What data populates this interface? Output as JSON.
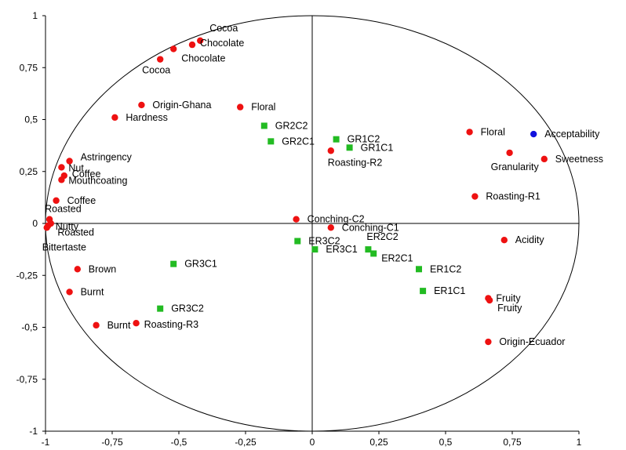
{
  "chart_data": {
    "type": "scatter",
    "title": "",
    "xlabel": "",
    "ylabel": "",
    "xlim": [
      -1,
      1
    ],
    "ylim": [
      -1,
      1
    ],
    "grid": false,
    "legend": "none",
    "x_ticks": [
      "-1",
      "-0,75",
      "-0,5",
      "-0,25",
      "0",
      "0,25",
      "0,5",
      "0,75",
      "1"
    ],
    "y_ticks": [
      "1",
      "0,75",
      "0,5",
      "0,25",
      "0",
      "-0,25",
      "-0,5",
      "-0,75",
      "-1"
    ],
    "unit_circle": true,
    "colors": {
      "red_marker": "#ee1111",
      "green_marker": "#22bb22",
      "blue_marker": "#1111dd",
      "axis": "#000000",
      "circle": "#000000"
    },
    "series": [
      {
        "marker": "red_circle",
        "points": [
          {
            "label": "Cocoa",
            "x": -0.42,
            "y": 0.88
          },
          {
            "label": "Chocolate",
            "x": -0.45,
            "y": 0.86
          },
          {
            "label": "Chocolate",
            "x": -0.52,
            "y": 0.84
          },
          {
            "label": "Cocoa",
            "x": -0.57,
            "y": 0.79
          },
          {
            "label": "Origin-Ghana",
            "x": -0.64,
            "y": 0.57
          },
          {
            "label": "Hardness",
            "x": -0.74,
            "y": 0.51
          },
          {
            "label": "Floral",
            "x": -0.27,
            "y": 0.56
          },
          {
            "label": "Astringency",
            "x": -0.91,
            "y": 0.3
          },
          {
            "label": "Nut",
            "x": -0.94,
            "y": 0.27
          },
          {
            "label": "Coffee",
            "x": -0.93,
            "y": 0.23
          },
          {
            "label": "Mouthcoating",
            "x": -0.94,
            "y": 0.21
          },
          {
            "label": "Coffee",
            "x": -0.96,
            "y": 0.11
          },
          {
            "label": "Roasted",
            "x": -0.985,
            "y": 0.02
          },
          {
            "label": "Nutty",
            "x": -0.98,
            "y": 0.0
          },
          {
            "label": "Roasted",
            "x": -0.99,
            "y": -0.01
          },
          {
            "label": "Bittertaste",
            "x": -0.995,
            "y": -0.02
          },
          {
            "label": "Brown",
            "x": -0.88,
            "y": -0.22
          },
          {
            "label": "Burnt",
            "x": -0.91,
            "y": -0.33
          },
          {
            "label": "Burnt",
            "x": -0.81,
            "y": -0.49
          },
          {
            "label": "Roasting-R3",
            "x": -0.66,
            "y": -0.48
          },
          {
            "label": "Roasting-R2",
            "x": 0.07,
            "y": 0.35
          },
          {
            "label": "Conching-C2",
            "x": -0.06,
            "y": 0.02
          },
          {
            "label": "Conching-C1",
            "x": 0.07,
            "y": -0.02
          },
          {
            "label": "Floral",
            "x": 0.59,
            "y": 0.44
          },
          {
            "label": "Granularity",
            "x": 0.74,
            "y": 0.34
          },
          {
            "label": "Sweetness",
            "x": 0.87,
            "y": 0.31
          },
          {
            "label": "Roasting-R1",
            "x": 0.61,
            "y": 0.13
          },
          {
            "label": "Acidity",
            "x": 0.72,
            "y": -0.08
          },
          {
            "label": "Fruity",
            "x": 0.66,
            "y": -0.36
          },
          {
            "label": "Fruity",
            "x": 0.665,
            "y": -0.37
          },
          {
            "label": "Origin-Ecuador",
            "x": 0.66,
            "y": -0.57
          }
        ]
      },
      {
        "marker": "green_square",
        "points": [
          {
            "label": "GR2C2",
            "x": -0.18,
            "y": 0.47
          },
          {
            "label": "GR2C1",
            "x": -0.155,
            "y": 0.395
          },
          {
            "label": "GR1C2",
            "x": 0.09,
            "y": 0.405
          },
          {
            "label": "GR1C1",
            "x": 0.14,
            "y": 0.365
          },
          {
            "label": "GR3C1",
            "x": -0.52,
            "y": -0.195
          },
          {
            "label": "GR3C2",
            "x": -0.57,
            "y": -0.41
          },
          {
            "label": "ER3C2",
            "x": -0.055,
            "y": -0.085
          },
          {
            "label": "ER3C1",
            "x": 0.01,
            "y": -0.125
          },
          {
            "label": "ER2C2",
            "x": 0.21,
            "y": -0.125
          },
          {
            "label": "ER2C1",
            "x": 0.23,
            "y": -0.145
          },
          {
            "label": "ER1C2",
            "x": 0.4,
            "y": -0.22
          },
          {
            "label": "ER1C1",
            "x": 0.415,
            "y": -0.325
          }
        ]
      },
      {
        "marker": "blue_circle",
        "points": [
          {
            "label": "Acceptability",
            "x": 0.83,
            "y": 0.43
          }
        ]
      }
    ]
  }
}
